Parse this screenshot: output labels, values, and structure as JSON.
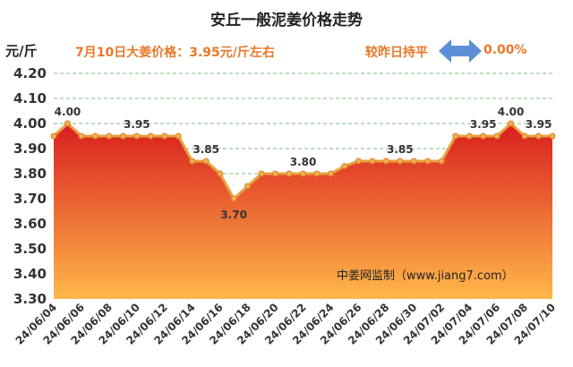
{
  "header": {
    "title": "安丘一般泥姜价格走势",
    "unit": "元/斤",
    "price_note": "7月10日大姜价格：3.95元/斤左右",
    "change_label": "较昨日持平",
    "change_value": "0.00%",
    "change_icon": "double-arrow-icon",
    "change_color": "#5b8fd6"
  },
  "chart_data": {
    "type": "area",
    "title": "安丘一般泥姜价格走势",
    "ylabel": "元/斤",
    "xlabel": "",
    "ylim": [
      3.3,
      4.2
    ],
    "yticks": [
      "4.20",
      "4.10",
      "4.00",
      "3.90",
      "3.80",
      "3.70",
      "3.60",
      "3.50",
      "3.40",
      "3.30"
    ],
    "grid": true,
    "x": [
      "24/06/04",
      "24/06/05",
      "24/06/06",
      "24/06/07",
      "24/06/08",
      "24/06/09",
      "24/06/10",
      "24/06/11",
      "24/06/12",
      "24/06/13",
      "24/06/14",
      "24/06/15",
      "24/06/16",
      "24/06/17",
      "24/06/18",
      "24/06/19",
      "24/06/20",
      "24/06/21",
      "24/06/22",
      "24/06/23",
      "24/06/24",
      "24/06/25",
      "24/06/26",
      "24/06/27",
      "24/06/28",
      "24/06/29",
      "24/06/30",
      "24/07/01",
      "24/07/02",
      "24/07/03",
      "24/07/04",
      "24/07/05",
      "24/07/06",
      "24/07/07",
      "24/07/08",
      "24/07/09",
      "24/07/10"
    ],
    "x_ticks": [
      "24/06/04",
      "24/06/06",
      "24/06/08",
      "24/06/10",
      "24/06/12",
      "24/06/14",
      "24/06/16",
      "24/06/18",
      "24/06/20",
      "24/06/22",
      "24/06/24",
      "24/06/26",
      "24/06/28",
      "24/06/30",
      "24/07/02",
      "24/07/04",
      "24/07/06",
      "24/07/08",
      "24/07/10"
    ],
    "values": [
      3.95,
      4.0,
      3.95,
      3.95,
      3.95,
      3.95,
      3.95,
      3.95,
      3.95,
      3.95,
      3.85,
      3.85,
      3.8,
      3.7,
      3.75,
      3.8,
      3.8,
      3.8,
      3.8,
      3.8,
      3.8,
      3.83,
      3.85,
      3.85,
      3.85,
      3.85,
      3.85,
      3.85,
      3.85,
      3.95,
      3.95,
      3.95,
      3.95,
      4.0,
      3.95,
      3.95,
      3.95
    ],
    "data_labels": [
      {
        "index": 1,
        "text": "4.00"
      },
      {
        "index": 6,
        "text": "3.95"
      },
      {
        "index": 11,
        "text": "3.85"
      },
      {
        "index": 13,
        "text": "3.70"
      },
      {
        "index": 18,
        "text": "3.80"
      },
      {
        "index": 25,
        "text": "3.85"
      },
      {
        "index": 31,
        "text": "3.95"
      },
      {
        "index": 33,
        "text": "4.00"
      },
      {
        "index": 35,
        "text": "3.95"
      }
    ],
    "colors": {
      "line": "#e8a040",
      "marker": "#f0b050",
      "fill_top": "#d81e1e",
      "fill_bottom": "#ffb84a"
    },
    "watermark": "中姜网监制（www.jiang7.com）"
  }
}
